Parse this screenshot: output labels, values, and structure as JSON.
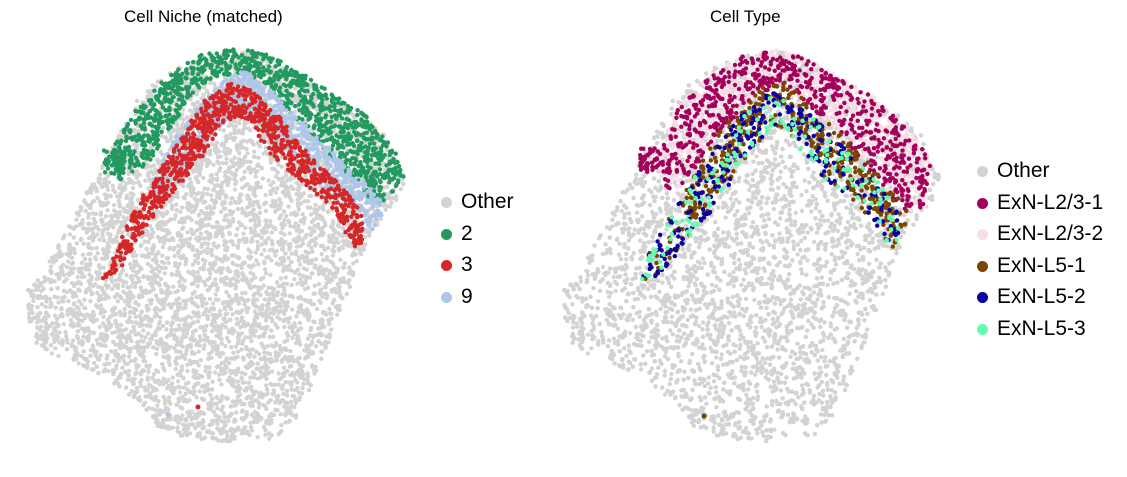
{
  "chart_data": [
    {
      "type": "scatter",
      "title": "Cell Niche (matched)",
      "legend_position": "right",
      "axes": "off",
      "legend": [
        {
          "label": "Other",
          "color": "#d3d3d3"
        },
        {
          "label": "2",
          "color": "#229a5f"
        },
        {
          "label": "3",
          "color": "#d62728"
        },
        {
          "label": "9",
          "color": "#aec7e8"
        }
      ]
    },
    {
      "type": "scatter",
      "title": "Cell Type",
      "legend_position": "right",
      "axes": "off",
      "legend": [
        {
          "label": "Other",
          "color": "#d3d3d3"
        },
        {
          "label": "ExN-L2/3-1",
          "color": "#a3005c"
        },
        {
          "label": "ExN-L2/3-2",
          "color": "#fbdde6"
        },
        {
          "label": "ExN-L5-1",
          "color": "#7b4700"
        },
        {
          "label": "ExN-L5-2",
          "color": "#0a009f"
        },
        {
          "label": "ExN-L5-3",
          "color": "#5dffac"
        }
      ]
    }
  ]
}
